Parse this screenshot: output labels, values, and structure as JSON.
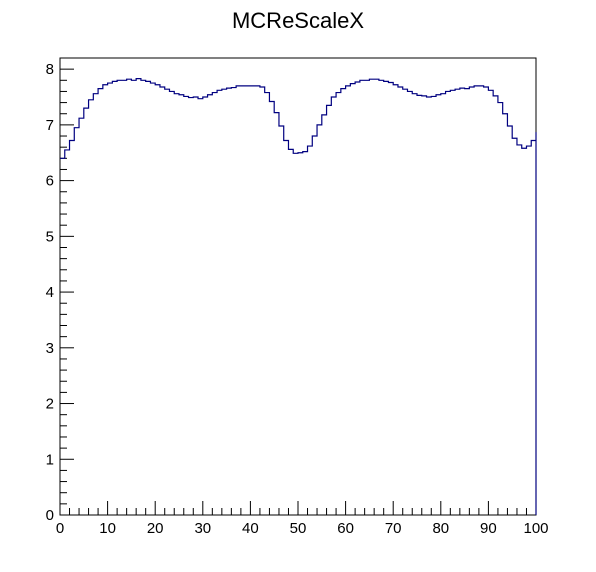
{
  "chart_data": {
    "type": "line",
    "title": "MCReScaleX",
    "xlabel": "",
    "ylabel": "",
    "xlim": [
      0,
      100
    ],
    "ylim": [
      0,
      8.2
    ],
    "grid": false,
    "x_ticks": [
      "0",
      "10",
      "20",
      "30",
      "40",
      "50",
      "60",
      "70",
      "80",
      "90",
      "100"
    ],
    "y_ticks": [
      "0",
      "1",
      "2",
      "3",
      "4",
      "5",
      "6",
      "7",
      "8"
    ],
    "series": [
      {
        "bin_width": 1,
        "color": "#000080",
        "values": [
          6.4,
          6.55,
          6.72,
          6.95,
          7.12,
          7.3,
          7.45,
          7.56,
          7.65,
          7.72,
          7.75,
          7.78,
          7.8,
          7.8,
          7.82,
          7.8,
          7.83,
          7.8,
          7.78,
          7.75,
          7.72,
          7.68,
          7.64,
          7.6,
          7.56,
          7.54,
          7.51,
          7.49,
          7.5,
          7.47,
          7.5,
          7.54,
          7.58,
          7.62,
          7.64,
          7.66,
          7.67,
          7.7,
          7.7,
          7.7,
          7.7,
          7.7,
          7.68,
          7.58,
          7.42,
          7.22,
          6.98,
          6.72,
          6.56,
          6.49,
          6.5,
          6.52,
          6.62,
          6.8,
          7.0,
          7.18,
          7.35,
          7.5,
          7.58,
          7.65,
          7.7,
          7.74,
          7.77,
          7.8,
          7.8,
          7.82,
          7.82,
          7.8,
          7.78,
          7.76,
          7.72,
          7.68,
          7.64,
          7.6,
          7.56,
          7.53,
          7.52,
          7.5,
          7.51,
          7.54,
          7.56,
          7.6,
          7.62,
          7.64,
          7.66,
          7.65,
          7.68,
          7.7,
          7.7,
          7.68,
          7.62,
          7.52,
          7.4,
          7.2,
          6.98,
          6.76,
          6.64,
          6.58,
          6.62,
          6.72,
          6.87
        ]
      }
    ]
  }
}
